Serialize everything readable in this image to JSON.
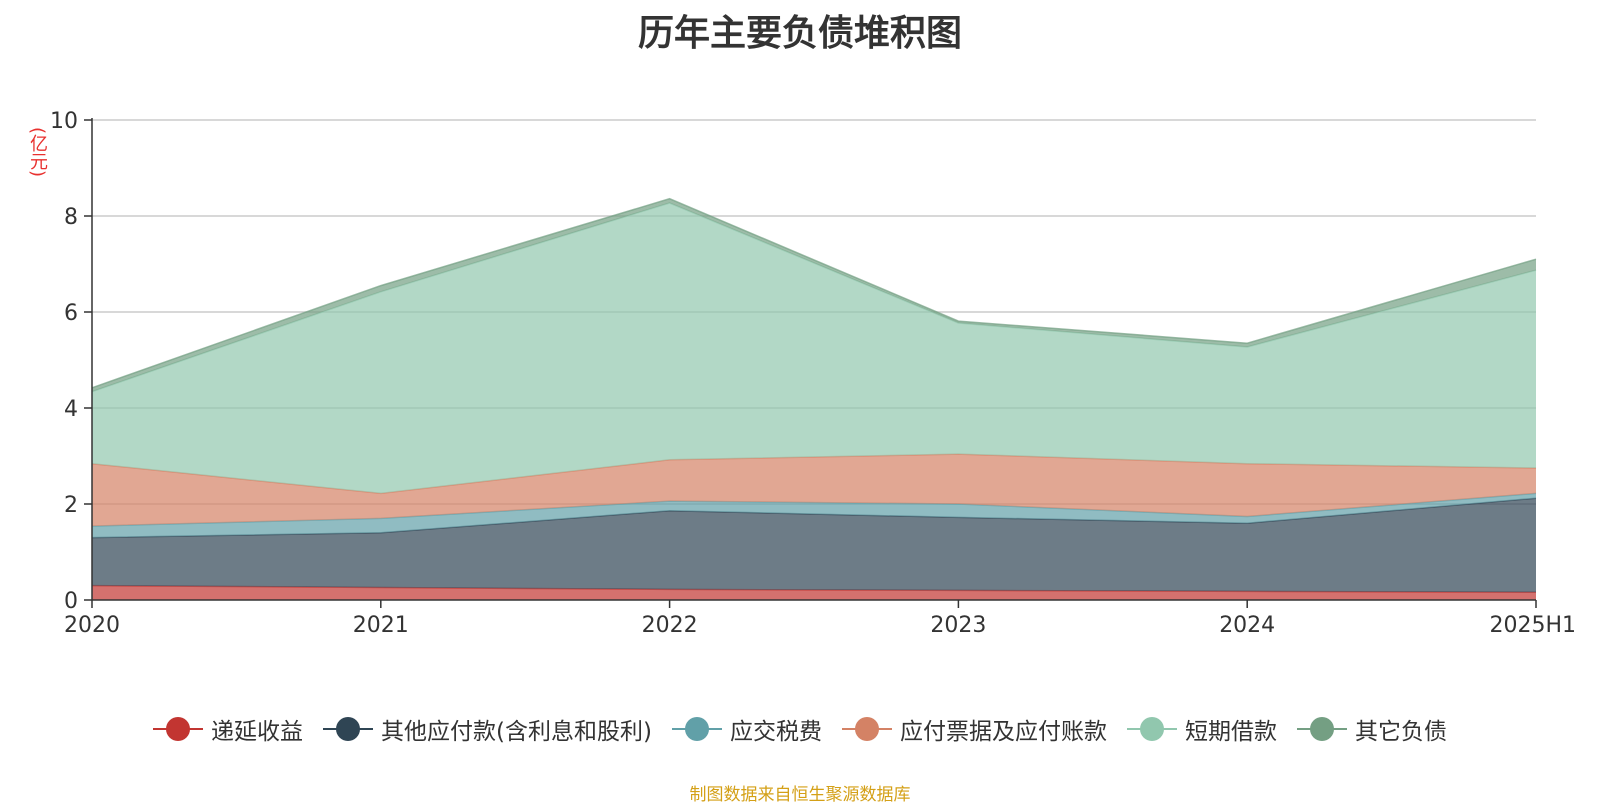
{
  "chart_data": {
    "type": "area",
    "stacked": true,
    "title": "历年主要负债堆积图",
    "unit_label": "(亿元)",
    "x": [
      "2020",
      "2021",
      "2022",
      "2023",
      "2024",
      "2025H1"
    ],
    "y_ticks": [
      "0",
      "2",
      "4",
      "6",
      "8",
      "10"
    ],
    "ylim": [
      0,
      10
    ],
    "grid": true,
    "legend_position": "bottom",
    "series": [
      {
        "name": "递延收益",
        "color": "#c23531",
        "values": [
          0.3,
          0.26,
          0.22,
          0.2,
          0.18,
          0.16
        ]
      },
      {
        "name": "其他应付款(含利息和股利)",
        "color": "#2f4554",
        "values": [
          1.0,
          1.14,
          1.64,
          1.52,
          1.42,
          1.96
        ]
      },
      {
        "name": "应交税费",
        "color": "#61a0a8",
        "values": [
          0.24,
          0.3,
          0.2,
          0.28,
          0.14,
          0.1
        ]
      },
      {
        "name": "应付票据及应付账款",
        "color": "#d48265",
        "values": [
          1.3,
          0.52,
          0.86,
          1.04,
          1.1,
          0.53
        ]
      },
      {
        "name": "短期借款",
        "color": "#91c7ae",
        "values": [
          1.5,
          4.2,
          5.35,
          2.73,
          2.43,
          4.12
        ]
      },
      {
        "name": "其它负债",
        "color": "#749f83",
        "values": [
          0.08,
          0.13,
          0.09,
          0.04,
          0.08,
          0.23
        ]
      }
    ],
    "source_note": "制图数据来自恒生聚源数据库"
  }
}
